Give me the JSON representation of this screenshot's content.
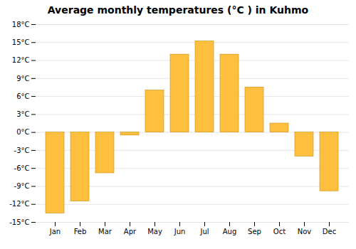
{
  "chart_data": {
    "type": "bar",
    "title": "Average monthly temperatures (°C ) in Kuhmo",
    "categories": [
      "Jan",
      "Feb",
      "Mar",
      "Apr",
      "May",
      "Jun",
      "Jul",
      "Aug",
      "Sep",
      "Oct",
      "Nov",
      "Dec"
    ],
    "values": [
      -13.5,
      -11.5,
      -6.8,
      -0.5,
      7.0,
      13.0,
      15.2,
      13.0,
      7.5,
      1.5,
      -4.0,
      -9.8
    ],
    "color": "#FFC040",
    "ylim": [
      -15,
      18
    ],
    "yticks": [
      {
        "value": -15,
        "label": "-15°C"
      },
      {
        "value": -12,
        "label": "-12°C"
      },
      {
        "value": -9,
        "label": "-9°C"
      },
      {
        "value": -6,
        "label": "-6°C"
      },
      {
        "value": -3,
        "label": "-3°C"
      },
      {
        "value": 0,
        "label": "0°C"
      },
      {
        "value": 3,
        "label": "3°C"
      },
      {
        "value": 6,
        "label": "6°C"
      },
      {
        "value": 9,
        "label": "9°C"
      },
      {
        "value": 12,
        "label": "12°C"
      },
      {
        "value": 15,
        "label": "15°C"
      },
      {
        "value": 18,
        "label": "18°C"
      }
    ],
    "grid": true
  }
}
